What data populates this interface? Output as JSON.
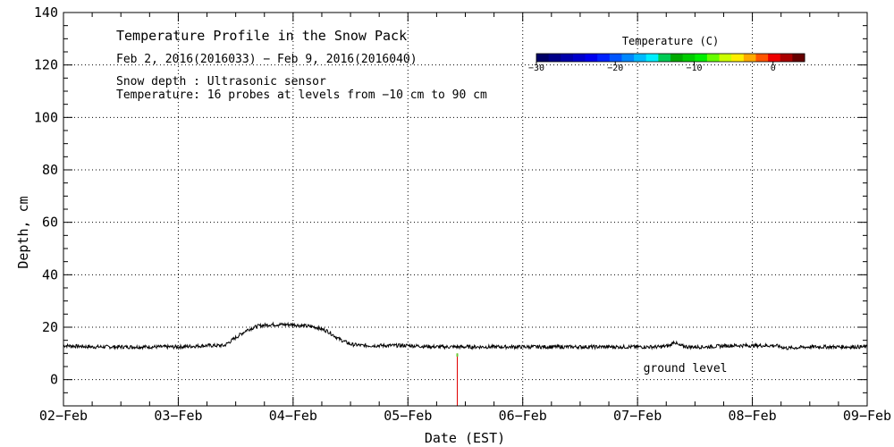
{
  "chart_data": {
    "type": "line",
    "title": "Temperature Profile in the Snow Pack",
    "subtitle": "Feb  2, 2016(2016033) − Feb  9, 2016(2016040)",
    "notes": [
      "Snow depth : Ultrasonic sensor",
      "Temperature: 16 probes at levels from −10 cm to 90 cm"
    ],
    "xlabel": "Date (EST)",
    "ylabel": "Depth, cm",
    "xlim": [
      0,
      7
    ],
    "ylim": [
      -10,
      140
    ],
    "x_tick_labels": [
      "02−Feb",
      "03−Feb",
      "04−Feb",
      "05−Feb",
      "06−Feb",
      "07−Feb",
      "08−Feb",
      "09−Feb"
    ],
    "y_ticks": [
      0,
      20,
      40,
      60,
      80,
      100,
      120,
      140
    ],
    "grid": true,
    "series": [
      {
        "name": "Snow depth",
        "color": "#000000",
        "x": [
          0.0,
          0.25,
          0.5,
          0.75,
          1.0,
          1.25,
          1.4,
          1.5,
          1.6,
          1.7,
          1.8,
          1.9,
          2.0,
          2.1,
          2.2,
          2.3,
          2.4,
          2.5,
          2.6,
          2.75,
          3.0,
          3.25,
          3.5,
          3.75,
          4.0,
          4.25,
          4.5,
          4.75,
          5.0,
          5.2,
          5.28,
          5.32,
          5.36,
          5.45,
          5.6,
          5.8,
          6.0,
          6.2,
          6.3,
          6.5,
          6.75,
          7.0
        ],
        "y": [
          13,
          12.5,
          12.5,
          12.5,
          12.5,
          13,
          13,
          16,
          19,
          20.5,
          21,
          21,
          21,
          20.5,
          20,
          18.5,
          15.5,
          13.5,
          13,
          13,
          13,
          12.5,
          12.5,
          12.5,
          12.5,
          12.5,
          12.5,
          12.5,
          12.5,
          12.5,
          13,
          14.5,
          13,
          12.5,
          12.5,
          13,
          13,
          13,
          12,
          12.5,
          12.5,
          12.5
        ]
      }
    ],
    "annotations": [
      {
        "text": "ground level",
        "x": 5.05,
        "y": 3
      }
    ],
    "marker": {
      "x": 3.43,
      "y_range": [
        -10,
        10
      ],
      "color": "#e00000",
      "top_color": "#66cc33"
    },
    "colorbar": {
      "title": "Temperature (C)",
      "range": [
        -30,
        4
      ],
      "ticks": [
        -30,
        -20,
        -10,
        0
      ],
      "tick_labels": [
        "−30",
        "−20",
        "−10",
        "0"
      ],
      "colors": [
        "#000066",
        "#000088",
        "#0000aa",
        "#0000cc",
        "#0000ee",
        "#0022ff",
        "#0055ff",
        "#0088ff",
        "#00bbff",
        "#00eeff",
        "#00cc55",
        "#00aa00",
        "#00cc00",
        "#00ee00",
        "#66ff00",
        "#ccff00",
        "#ffee00",
        "#ffaa00",
        "#ff5500",
        "#ee0000",
        "#aa0000",
        "#660000"
      ]
    }
  }
}
